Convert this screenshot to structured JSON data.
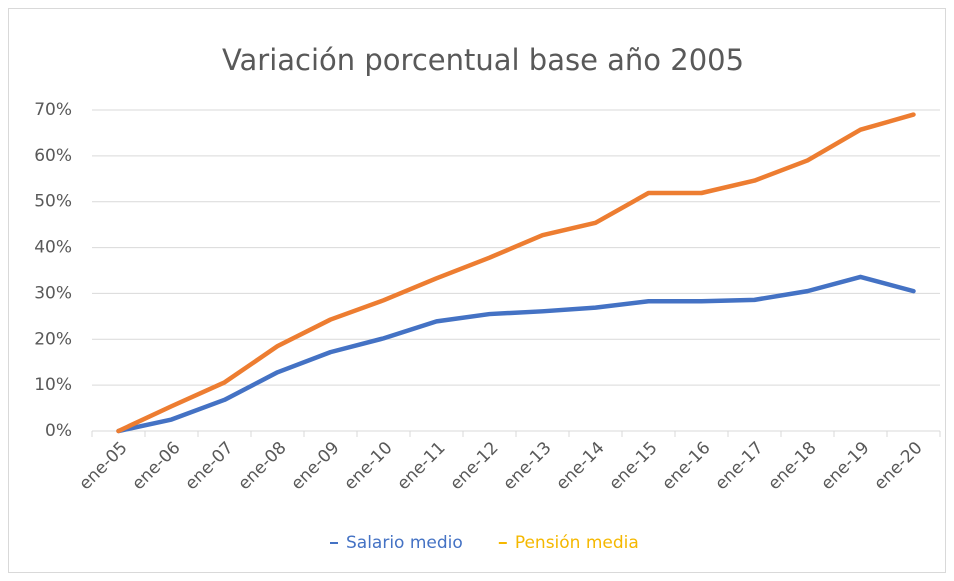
{
  "chart_data": {
    "type": "line",
    "title": "Variación porcentual base año 2005",
    "categories": [
      "ene-05",
      "ene-06",
      "ene-07",
      "ene-08",
      "ene-09",
      "ene-10",
      "ene-11",
      "ene-12",
      "ene-13",
      "ene-14",
      "ene-15",
      "ene-16",
      "ene-17",
      "ene-18",
      "ene-19",
      "ene-20"
    ],
    "series": [
      {
        "name": "Salario medio",
        "color": "#4472c4",
        "label_color": "#4472c4",
        "values": [
          0,
          2.5,
          6.8,
          12.8,
          17.2,
          20.2,
          23.9,
          25.5,
          26.1,
          26.9,
          28.3,
          28.3,
          28.6,
          30.5,
          33.6,
          30.5
        ]
      },
      {
        "name": "Pensión media",
        "color": "#ed7d31",
        "label_color": "#f5b800",
        "values": [
          0,
          5.4,
          10.6,
          18.5,
          24.3,
          28.5,
          33.3,
          37.8,
          42.7,
          45.4,
          51.9,
          51.9,
          54.6,
          59.0,
          65.7,
          69.0
        ]
      }
    ],
    "ylim": [
      0,
      70
    ],
    "yticks": [
      {
        "value": 0,
        "label": "0%"
      },
      {
        "value": 10,
        "label": "10%"
      },
      {
        "value": 20,
        "label": "20%"
      },
      {
        "value": 30,
        "label": "30%"
      },
      {
        "value": 40,
        "label": "40%"
      },
      {
        "value": 50,
        "label": "50%"
      },
      {
        "value": 60,
        "label": "60%"
      },
      {
        "value": 70,
        "label": "70%"
      }
    ],
    "grid": true,
    "legend": "bottom"
  }
}
